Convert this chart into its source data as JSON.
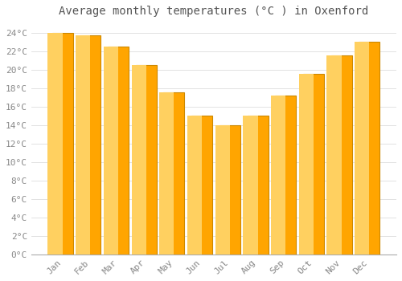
{
  "title": "Average monthly temperatures (°C ) in Oxenford",
  "months": [
    "Jan",
    "Feb",
    "Mar",
    "Apr",
    "May",
    "Jun",
    "Jul",
    "Aug",
    "Sep",
    "Oct",
    "Nov",
    "Dec"
  ],
  "values": [
    24.0,
    23.7,
    22.5,
    20.5,
    17.5,
    15.0,
    14.0,
    15.0,
    17.2,
    19.5,
    21.5,
    23.0
  ],
  "bar_color": "#FFA500",
  "bar_edge_color": "#CC8800",
  "background_color": "#FFFFFF",
  "plot_bg_color": "#FFFFFF",
  "grid_color": "#DDDDDD",
  "text_color": "#888888",
  "title_color": "#555555",
  "ylim": [
    0,
    25
  ],
  "ytick_step": 2,
  "title_fontsize": 10,
  "tick_fontsize": 8,
  "font_family": "monospace"
}
